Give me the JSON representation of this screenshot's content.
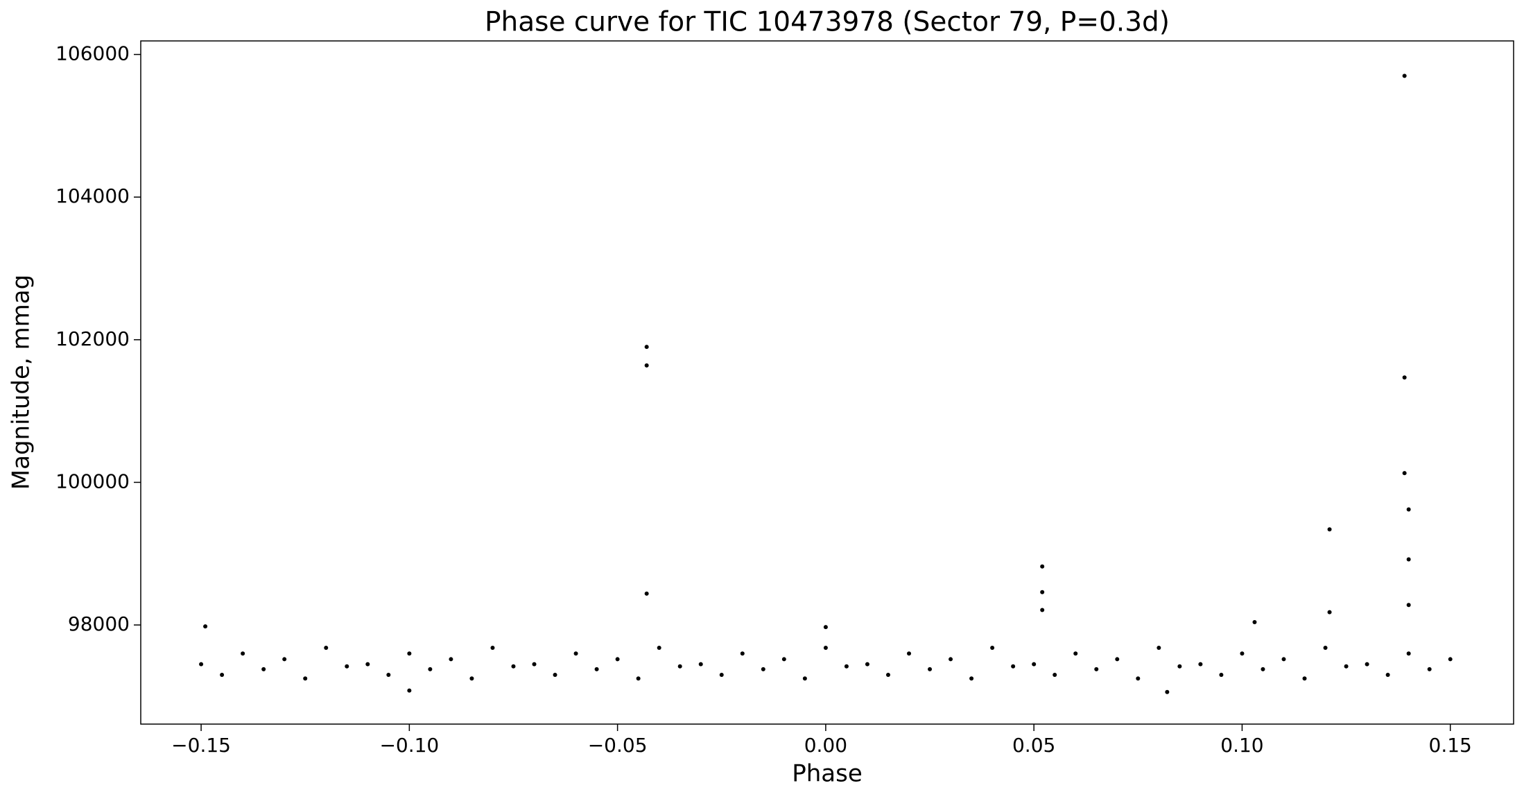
{
  "chart_data": {
    "type": "scatter",
    "title": "Phase curve for TIC 10473978 (Sector 79, P=0.3d)",
    "xlabel": "Phase",
    "ylabel": "Magnitude, mmag",
    "color": "#000000",
    "x": [
      -0.15,
      -0.145,
      -0.14,
      -0.135,
      -0.13,
      -0.125,
      -0.12,
      -0.115,
      -0.11,
      -0.105,
      -0.1,
      -0.095,
      -0.09,
      -0.085,
      -0.08,
      -0.075,
      -0.07,
      -0.065,
      -0.06,
      -0.055,
      -0.05,
      -0.045,
      -0.04,
      -0.035,
      -0.03,
      -0.025,
      -0.02,
      -0.015,
      -0.01,
      -0.005,
      0,
      0.005,
      0.01,
      0.015,
      0.02,
      0.025,
      0.03,
      0.035,
      0.04,
      0.045,
      0.05,
      0.055,
      0.06,
      0.065,
      0.07,
      0.075,
      0.08,
      0.085,
      0.09,
      0.095,
      0.1,
      0.105,
      0.11,
      0.115,
      0.12,
      0.125,
      0.13,
      0.135,
      0.14,
      0.145,
      0.15,
      -0.043,
      -0.043,
      -0.043,
      0.052,
      0.052,
      0.052,
      0.121,
      0.121,
      0.139,
      0.139,
      0.139,
      0.14,
      0.14,
      0.14,
      0.103,
      -0.149,
      0.0,
      -0.1,
      0.082
    ],
    "y": [
      97450,
      97300,
      97600,
      97380,
      97520,
      97250,
      97680,
      97420,
      97450,
      97300,
      97600,
      97380,
      97520,
      97250,
      97680,
      97420,
      97450,
      97300,
      97600,
      97380,
      97520,
      97250,
      97680,
      97420,
      97450,
      97300,
      97600,
      97380,
      97520,
      97250,
      97680,
      97420,
      97450,
      97300,
      97600,
      97380,
      97520,
      97250,
      97680,
      97420,
      97450,
      97300,
      97600,
      97380,
      97520,
      97250,
      97680,
      97420,
      97450,
      97300,
      97600,
      97380,
      97520,
      97250,
      97680,
      97420,
      97450,
      97300,
      97600,
      97380,
      97520,
      101900,
      101640,
      98440,
      98820,
      98460,
      98210,
      99340,
      98180,
      105700,
      101470,
      100130,
      99620,
      98920,
      98280,
      98040,
      97980,
      97970,
      97080,
      97060
    ],
    "xlim": [
      -0.1645,
      0.1652
    ],
    "ylim": [
      96610,
      106190
    ],
    "xticks": [
      {
        "value": -0.15,
        "label": "−0.15"
      },
      {
        "value": -0.1,
        "label": "−0.10"
      },
      {
        "value": -0.05,
        "label": "−0.05"
      },
      {
        "value": 0,
        "label": "0.00"
      },
      {
        "value": 0.05,
        "label": "0.05"
      },
      {
        "value": 0.1,
        "label": "0.10"
      },
      {
        "value": 0.15,
        "label": "0.15"
      }
    ],
    "yticks": [
      98000,
      100000,
      102000,
      104000,
      106000
    ]
  }
}
